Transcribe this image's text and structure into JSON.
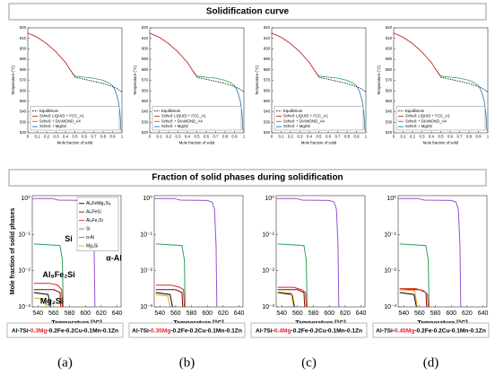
{
  "headers": [
    "Solidification curve",
    "Fraction of solid phases during solidification"
  ],
  "highlight_color": "#e8202a",
  "captions": [
    {
      "prefix": "Al-7Si-",
      "mg": "0.3Mg",
      "suffix": "-0.2Fe-0.2Cu-0.1Mn-0.1Zn"
    },
    {
      "prefix": "Al-7Si-",
      "mg": "0.35Mg",
      "suffix": "-0.2Fe-0.2Cu-0.1Mn-0.1Zn"
    },
    {
      "prefix": "Al-7Si-",
      "mg": "0.4Mg",
      "suffix": "-0.2Fe-0.2Cu-0.1Mn-0.1Zn"
    },
    {
      "prefix": "Al-7Si-",
      "mg": "0.45Mg",
      "suffix": "-0.2Fe-0.2Cu-0.1Mn-0.1Zn"
    }
  ],
  "panel_labels": [
    "(a)",
    "(b)",
    "(c)",
    "(d)"
  ],
  "chart_data": [
    {
      "type": "line",
      "xlabel": "Mole fraction of solid",
      "ylabel": "Temperature (°C)",
      "xlim": [
        0,
        1
      ],
      "ylim": [
        520,
        620
      ],
      "xticks": [
        0,
        0.1,
        0.2,
        0.3,
        0.4,
        0.5,
        0.6,
        0.7,
        0.8,
        0.9,
        1
      ],
      "yticks": [
        520,
        530,
        540,
        550,
        560,
        570,
        580,
        590,
        600,
        610,
        620
      ],
      "legend": "lower left",
      "series": [
        {
          "name": "Equilibrium",
          "color": "#000000",
          "dash": true,
          "x": [
            0,
            0.1,
            0.2,
            0.3,
            0.4,
            0.45,
            0.5,
            0.6,
            0.7,
            0.8,
            0.9,
            0.95,
            1
          ],
          "values": [
            615,
            611,
            605,
            597,
            587,
            580,
            573,
            571,
            569,
            567,
            564,
            562,
            559
          ]
        },
        {
          "name": "Scheil: LIQUID + FCC_A1",
          "color": "#d62728",
          "x": [
            0,
            0.1,
            0.2,
            0.3,
            0.4,
            0.45,
            0.5
          ],
          "values": [
            615,
            611,
            605,
            597,
            587,
            580,
            574
          ]
        },
        {
          "name": "Scheil: + DIAMOND_A4",
          "color": "#2ca05a",
          "x": [
            0.5,
            0.6,
            0.7,
            0.8,
            0.85,
            0.9
          ],
          "values": [
            574,
            573,
            572,
            570,
            568,
            565
          ]
        },
        {
          "name": "Scheil: + Mg2Si",
          "color": "#1f77b4",
          "x": [
            0.9,
            0.93,
            0.96,
            0.98,
            0.99
          ],
          "values": [
            565,
            560,
            551,
            538,
            522
          ]
        }
      ]
    },
    {
      "type": "line",
      "xlabel": "Mole fraction of solid",
      "ylabel": "Temperature (°C)",
      "xlim": [
        0,
        1
      ],
      "ylim": [
        520,
        620
      ],
      "xticks": [
        0,
        0.1,
        0.2,
        0.3,
        0.4,
        0.5,
        0.6,
        0.7,
        0.8,
        0.9,
        1
      ],
      "yticks": [
        520,
        530,
        540,
        550,
        560,
        570,
        580,
        590,
        600,
        610,
        620
      ],
      "legend": "lower left",
      "series": [
        {
          "name": "Equilibrium",
          "color": "#000000",
          "dash": true,
          "x": [
            0,
            0.1,
            0.2,
            0.3,
            0.4,
            0.45,
            0.5,
            0.6,
            0.7,
            0.8,
            0.9,
            0.95,
            1
          ],
          "values": [
            615,
            611,
            605,
            597,
            587,
            580,
            573,
            571,
            569,
            567,
            564,
            562,
            559
          ]
        },
        {
          "name": "Scheil: LIQUID + FCC_A1",
          "color": "#d62728",
          "x": [
            0,
            0.1,
            0.2,
            0.3,
            0.4,
            0.45,
            0.5
          ],
          "values": [
            615,
            611,
            605,
            597,
            587,
            580,
            574
          ]
        },
        {
          "name": "Scheil: + DIAMOND_A4",
          "color": "#2ca05a",
          "x": [
            0.5,
            0.6,
            0.7,
            0.8,
            0.85,
            0.9
          ],
          "values": [
            574,
            573,
            572,
            570,
            568,
            565
          ]
        },
        {
          "name": "Scheil: + Mg2Si",
          "color": "#1f77b4",
          "x": [
            0.9,
            0.93,
            0.96,
            0.98,
            0.99
          ],
          "values": [
            565,
            560,
            551,
            538,
            522
          ]
        }
      ]
    },
    {
      "type": "line",
      "xlabel": "Mole fraction of solid",
      "ylabel": "Temperature (°C)",
      "xlim": [
        0,
        1
      ],
      "ylim": [
        520,
        620
      ],
      "xticks": [
        0,
        0.1,
        0.2,
        0.3,
        0.4,
        0.5,
        0.6,
        0.7,
        0.8,
        0.9,
        1
      ],
      "yticks": [
        520,
        530,
        540,
        550,
        560,
        570,
        580,
        590,
        600,
        610,
        620
      ],
      "legend": "lower left",
      "series": [
        {
          "name": "Equilibrium",
          "color": "#000000",
          "dash": true,
          "x": [
            0,
            0.1,
            0.2,
            0.3,
            0.4,
            0.45,
            0.5,
            0.6,
            0.7,
            0.8,
            0.9,
            0.95,
            1
          ],
          "values": [
            615,
            611,
            605,
            597,
            587,
            580,
            573,
            571,
            569,
            567,
            564,
            562,
            559
          ]
        },
        {
          "name": "Scheil: LIQUID + FCC_A1",
          "color": "#d62728",
          "x": [
            0,
            0.1,
            0.2,
            0.3,
            0.4,
            0.45,
            0.5
          ],
          "values": [
            615,
            611,
            605,
            597,
            587,
            580,
            574
          ]
        },
        {
          "name": "Scheil: + DIAMOND_A4",
          "color": "#2ca05a",
          "x": [
            0.5,
            0.6,
            0.7,
            0.8,
            0.85,
            0.9
          ],
          "values": [
            574,
            573,
            572,
            570,
            568,
            565
          ]
        },
        {
          "name": "Scheil: + Mg2Si",
          "color": "#1f77b4",
          "x": [
            0.9,
            0.93,
            0.96,
            0.98,
            0.99
          ],
          "values": [
            565,
            560,
            551,
            538,
            522
          ]
        }
      ]
    },
    {
      "type": "line",
      "xlabel": "Mole fraction of solid",
      "ylabel": "Temperature (°C)",
      "xlim": [
        0,
        1
      ],
      "ylim": [
        520,
        620
      ],
      "xticks": [
        0,
        0.1,
        0.2,
        0.3,
        0.4,
        0.5,
        0.6,
        0.7,
        0.8,
        0.9,
        1
      ],
      "yticks": [
        520,
        530,
        540,
        550,
        560,
        570,
        580,
        590,
        600,
        610,
        620
      ],
      "legend": "lower left",
      "series": [
        {
          "name": "Equilibrium",
          "color": "#000000",
          "dash": true,
          "x": [
            0,
            0.1,
            0.2,
            0.3,
            0.4,
            0.45,
            0.5,
            0.6,
            0.7,
            0.8,
            0.9,
            0.95,
            1
          ],
          "values": [
            615,
            611,
            605,
            597,
            587,
            580,
            573,
            571,
            569,
            567,
            564,
            562,
            559
          ]
        },
        {
          "name": "Scheil: LIQUID + FCC_A1",
          "color": "#d62728",
          "x": [
            0,
            0.1,
            0.2,
            0.3,
            0.4,
            0.45,
            0.5
          ],
          "values": [
            615,
            611,
            605,
            597,
            587,
            580,
            574
          ]
        },
        {
          "name": "Scheil: + DIAMOND_A4",
          "color": "#2ca05a",
          "x": [
            0.5,
            0.6,
            0.7,
            0.8,
            0.85,
            0.9
          ],
          "values": [
            574,
            573,
            572,
            570,
            568,
            565
          ]
        },
        {
          "name": "Scheil: + Mg2Si",
          "color": "#1f77b4",
          "x": [
            0.9,
            0.93,
            0.96,
            0.98,
            0.99
          ],
          "values": [
            565,
            560,
            551,
            538,
            522
          ]
        }
      ]
    },
    {
      "type": "line",
      "log": true,
      "xlabel": "Temperature [°C]",
      "ylabel": "Mole fraction of solid phases",
      "xlim": [
        533,
        645
      ],
      "ylim": [
        0.001,
        1.2
      ],
      "xticks": [
        540,
        560,
        580,
        600,
        620,
        640
      ],
      "yticks": [
        {
          "value": 1,
          "label": "10⁰"
        },
        {
          "value": 0.1,
          "label": "10⁻¹"
        },
        {
          "value": 0.01,
          "label": "10⁻²"
        },
        {
          "value": 0.001,
          "label": "10⁻³"
        }
      ],
      "legend": "upper center",
      "annotations": [
        {
          "text": "Si",
          "color": "#2ca05a"
        },
        {
          "text": "α-Al",
          "color": "#9b4fcf"
        },
        {
          "text": "Al₈Fe₂Si",
          "color": "#d62728"
        },
        {
          "text": "Mg₂Si",
          "color": "#e8a317"
        }
      ],
      "series": [
        {
          "name": "Al₈FeMg₃Si₆",
          "color": "#000000",
          "x": [
            535,
            553,
            556
          ],
          "values": [
            0.0025,
            0.0022,
            0.001
          ]
        },
        {
          "name": "Al₅FeSi",
          "color": "#8b0000",
          "x": [
            535,
            560,
            568,
            569
          ],
          "values": [
            0.003,
            0.003,
            0.0025,
            0.001
          ]
        },
        {
          "name": "Al₈Fe₂Si",
          "color": "#d62728",
          "x": [
            535,
            555,
            565,
            570,
            571
          ],
          "values": [
            0.0045,
            0.0045,
            0.004,
            0.003,
            0.001
          ]
        },
        {
          "name": "Si",
          "color": "#2ca05a",
          "x": [
            535,
            568,
            571,
            572
          ],
          "values": [
            0.055,
            0.05,
            0.02,
            0.001
          ]
        },
        {
          "name": "α-Al",
          "color": "#9b4fcf",
          "x": [
            535,
            558,
            566,
            600,
            606,
            609,
            611,
            612
          ],
          "values": [
            1,
            1,
            0.9,
            0.88,
            0.8,
            0.5,
            0.05,
            0.001
          ]
        },
        {
          "name": "Mg₂Si",
          "color": "#e8a317",
          "x": [
            535,
            548,
            551
          ],
          "values": [
            0.0018,
            0.0016,
            0.001
          ]
        }
      ]
    },
    {
      "type": "line",
      "log": true,
      "xlabel": "Temperature [°C]",
      "xlim": [
        533,
        645
      ],
      "ylim": [
        0.001,
        1.2
      ],
      "xticks": [
        540,
        560,
        580,
        600,
        620,
        640
      ],
      "yticks": [
        {
          "value": 1,
          "label": "10⁰"
        },
        {
          "value": 0.1,
          "label": "10⁻¹"
        },
        {
          "value": 0.01,
          "label": "10⁻²"
        },
        {
          "value": 0.001,
          "label": "10⁻³"
        }
      ],
      "series": [
        {
          "name": "Al₈FeMg₃Si₆",
          "color": "#000000",
          "x": [
            535,
            553,
            556
          ],
          "values": [
            0.0025,
            0.0022,
            0.001
          ]
        },
        {
          "name": "Al₅FeSi",
          "color": "#8b0000",
          "x": [
            535,
            560,
            568,
            569
          ],
          "values": [
            0.003,
            0.003,
            0.0025,
            0.001
          ]
        },
        {
          "name": "Al₈Fe₂Si",
          "color": "#d62728",
          "x": [
            535,
            555,
            565,
            570,
            571
          ],
          "values": [
            0.004,
            0.004,
            0.0035,
            0.003,
            0.001
          ]
        },
        {
          "name": "Si",
          "color": "#2ca05a",
          "x": [
            535,
            568,
            571,
            572
          ],
          "values": [
            0.055,
            0.05,
            0.02,
            0.001
          ]
        },
        {
          "name": "α-Al",
          "color": "#9b4fcf",
          "x": [
            535,
            558,
            566,
            600,
            606,
            609,
            611,
            612
          ],
          "values": [
            1,
            1,
            0.9,
            0.88,
            0.8,
            0.5,
            0.05,
            0.001
          ]
        },
        {
          "name": "Mg₂Si",
          "color": "#e8a317",
          "x": [
            535,
            550,
            553
          ],
          "values": [
            0.0022,
            0.002,
            0.001
          ]
        }
      ]
    },
    {
      "type": "line",
      "log": true,
      "xlabel": "Temperature [°C]",
      "xlim": [
        533,
        645
      ],
      "ylim": [
        0.001,
        1.2
      ],
      "xticks": [
        540,
        560,
        580,
        600,
        620,
        640
      ],
      "yticks": [
        {
          "value": 1,
          "label": "10⁰"
        },
        {
          "value": 0.1,
          "label": "10⁻¹"
        },
        {
          "value": 0.01,
          "label": "10⁻²"
        },
        {
          "value": 0.001,
          "label": "10⁻³"
        }
      ],
      "series": [
        {
          "name": "Al₈FeMg₃Si₆",
          "color": "#000000",
          "x": [
            535,
            553,
            556
          ],
          "values": [
            0.0025,
            0.0022,
            0.001
          ]
        },
        {
          "name": "Al₅FeSi",
          "color": "#8b0000",
          "x": [
            535,
            560,
            568,
            569
          ],
          "values": [
            0.003,
            0.003,
            0.0025,
            0.001
          ]
        },
        {
          "name": "Al₈Fe₂Si",
          "color": "#d62728",
          "x": [
            535,
            555,
            565,
            570,
            571
          ],
          "values": [
            0.0035,
            0.0035,
            0.003,
            0.0025,
            0.001
          ]
        },
        {
          "name": "Si",
          "color": "#2ca05a",
          "x": [
            535,
            568,
            571,
            572
          ],
          "values": [
            0.055,
            0.05,
            0.02,
            0.001
          ]
        },
        {
          "name": "α-Al",
          "color": "#9b4fcf",
          "x": [
            535,
            558,
            566,
            600,
            606,
            609,
            611,
            612
          ],
          "values": [
            1,
            1,
            0.9,
            0.88,
            0.8,
            0.5,
            0.05,
            0.001
          ]
        },
        {
          "name": "Mg₂Si",
          "color": "#e8a317",
          "x": [
            535,
            552,
            555
          ],
          "values": [
            0.0026,
            0.0024,
            0.001
          ]
        }
      ]
    },
    {
      "type": "line",
      "log": true,
      "xlabel": "Temperature [°C]",
      "xlim": [
        533,
        645
      ],
      "ylim": [
        0.001,
        1.2
      ],
      "xticks": [
        540,
        560,
        580,
        600,
        620,
        640
      ],
      "yticks": [
        {
          "value": 1,
          "label": "10⁰"
        },
        {
          "value": 0.1,
          "label": "10⁻¹"
        },
        {
          "value": 0.01,
          "label": "10⁻²"
        },
        {
          "value": 0.001,
          "label": "10⁻³"
        }
      ],
      "series": [
        {
          "name": "Al₈FeMg₃Si₆",
          "color": "#000000",
          "x": [
            535,
            553,
            556
          ],
          "values": [
            0.0025,
            0.0022,
            0.001
          ]
        },
        {
          "name": "Al₅FeSi",
          "color": "#8b0000",
          "x": [
            535,
            560,
            568,
            569
          ],
          "values": [
            0.003,
            0.003,
            0.0025,
            0.001
          ]
        },
        {
          "name": "Al₈Fe₂Si",
          "color": "#d62728",
          "x": [
            535,
            555,
            565,
            570,
            571
          ],
          "values": [
            0.0032,
            0.0032,
            0.0028,
            0.0022,
            0.001
          ]
        },
        {
          "name": "Si",
          "color": "#2ca05a",
          "x": [
            535,
            568,
            571,
            572
          ],
          "values": [
            0.055,
            0.05,
            0.02,
            0.001
          ]
        },
        {
          "name": "α-Al",
          "color": "#9b4fcf",
          "x": [
            535,
            558,
            566,
            600,
            606,
            609,
            611,
            612
          ],
          "values": [
            1,
            1,
            0.9,
            0.88,
            0.8,
            0.5,
            0.05,
            0.001
          ]
        },
        {
          "name": "Mg₂Si",
          "color": "#e8a317",
          "x": [
            535,
            554,
            557
          ],
          "values": [
            0.003,
            0.0028,
            0.001
          ]
        }
      ]
    }
  ]
}
